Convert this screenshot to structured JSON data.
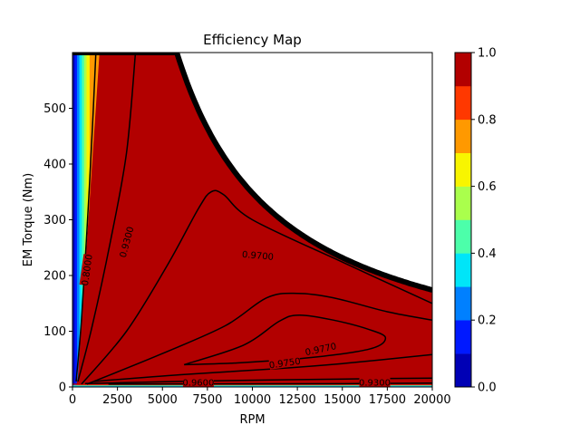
{
  "chart_data": {
    "type": "heatmap",
    "title": "Efficiency Map",
    "xlabel": "RPM",
    "ylabel": "EM Torque (Nm)",
    "xlim": [
      0,
      20000
    ],
    "ylim": [
      0,
      600
    ],
    "x_ticks": [
      0,
      2500,
      5000,
      7500,
      10000,
      12500,
      15000,
      17500,
      20000
    ],
    "x_tick_labels": [
      "0",
      "2500",
      "5000",
      "7500",
      "10000",
      "12500",
      "15000",
      "17500",
      "20000"
    ],
    "y_ticks": [
      0,
      100,
      200,
      300,
      400,
      500
    ],
    "y_tick_labels": [
      "0",
      "100",
      "200",
      "300",
      "400",
      "500"
    ],
    "grid": false,
    "colorbar": {
      "range": [
        0,
        1
      ],
      "ticks": [
        0,
        0.2,
        0.4,
        0.6,
        0.8,
        1.0
      ],
      "tick_labels": [
        "0.0",
        "0.2",
        "0.4",
        "0.6",
        "0.8",
        "1.0"
      ],
      "levels": [
        0,
        0.1,
        0.2,
        0.3,
        0.4,
        0.5,
        0.6,
        0.7,
        0.8,
        0.9,
        1.0
      ],
      "colors": [
        "#0000b5",
        "#0019ff",
        "#0080ff",
        "#00e5f8",
        "#4cffaa",
        "#aaff4c",
        "#f8f500",
        "#ff9900",
        "#ff3800",
        "#b20000"
      ]
    },
    "torque_limit_curve": {
      "base_speed_rpm": 5800,
      "max_torque_nm": 600,
      "points": [
        [
          5800,
          600
        ],
        [
          6500,
          535
        ],
        [
          7500,
          462
        ],
        [
          8500,
          410
        ],
        [
          10000,
          348
        ],
        [
          12500,
          279
        ],
        [
          15000,
          233
        ],
        [
          17500,
          199
        ],
        [
          20000,
          174
        ]
      ]
    },
    "contour_lines": [
      {
        "label": "0.8000",
        "points": [
          [
            200,
            10
          ],
          [
            500,
            120
          ],
          [
            800,
            280
          ],
          [
            1100,
            460
          ],
          [
            1300,
            600
          ]
        ]
      },
      {
        "label": "0.9300",
        "points": [
          [
            300,
            10
          ],
          [
            1100,
            110
          ],
          [
            2100,
            260
          ],
          [
            3000,
            420
          ],
          [
            3500,
            600
          ]
        ]
      },
      {
        "label": "0.9700",
        "points": [
          [
            500,
            5
          ],
          [
            3000,
            100
          ],
          [
            5300,
            220
          ],
          [
            7000,
            320
          ],
          [
            7700,
            350
          ],
          [
            8400,
            345
          ],
          [
            10000,
            300
          ],
          [
            15000,
            224
          ],
          [
            20000,
            150
          ]
        ]
      },
      {
        "label": "",
        "points": [
          [
            800,
            5
          ],
          [
            5000,
            60
          ],
          [
            8500,
            110
          ],
          [
            10800,
            160
          ],
          [
            12500,
            168
          ],
          [
            14500,
            160
          ],
          [
            17500,
            135
          ],
          [
            20000,
            120
          ]
        ]
      },
      {
        "label": "0.9770",
        "points": [
          [
            6200,
            40
          ],
          [
            9500,
            75
          ],
          [
            11500,
            118
          ],
          [
            12600,
            129
          ],
          [
            14500,
            120
          ],
          [
            16500,
            103
          ],
          [
            17400,
            88
          ],
          [
            16500,
            68
          ],
          [
            13000,
            52
          ],
          [
            9000,
            43
          ],
          [
            6200,
            40
          ]
        ]
      },
      {
        "label": "0.9750",
        "points": [
          [
            1200,
            10
          ],
          [
            6000,
            22
          ],
          [
            11000,
            32
          ],
          [
            15000,
            42
          ],
          [
            20000,
            58
          ]
        ]
      },
      {
        "label": "0.9600",
        "points": [
          [
            700,
            6
          ],
          [
            6000,
            10
          ],
          [
            12000,
            13
          ],
          [
            17000,
            15
          ],
          [
            20000,
            16
          ]
        ]
      },
      {
        "label": "0.9300",
        "points": [
          [
            2000,
            5
          ],
          [
            16000,
            6
          ],
          [
            20000,
            7
          ]
        ]
      }
    ],
    "contour_labels": [
      {
        "text": "0.8000",
        "at": [
          800,
          210
        ],
        "angle": -82
      },
      {
        "text": "0.9300",
        "at": [
          3000,
          260
        ],
        "angle": -75
      },
      {
        "text": "0.9700",
        "at": [
          10300,
          236
        ],
        "angle": 5
      },
      {
        "text": "0.9770",
        "at": [
          13800,
          68
        ],
        "angle": -12
      },
      {
        "text": "0.9750",
        "at": [
          11800,
          43
        ],
        "angle": -8
      },
      {
        "text": "0.9600",
        "at": [
          7000,
          8
        ],
        "angle": 0
      },
      {
        "text": "0.9300",
        "at": [
          16800,
          8
        ],
        "angle": 0
      }
    ]
  }
}
